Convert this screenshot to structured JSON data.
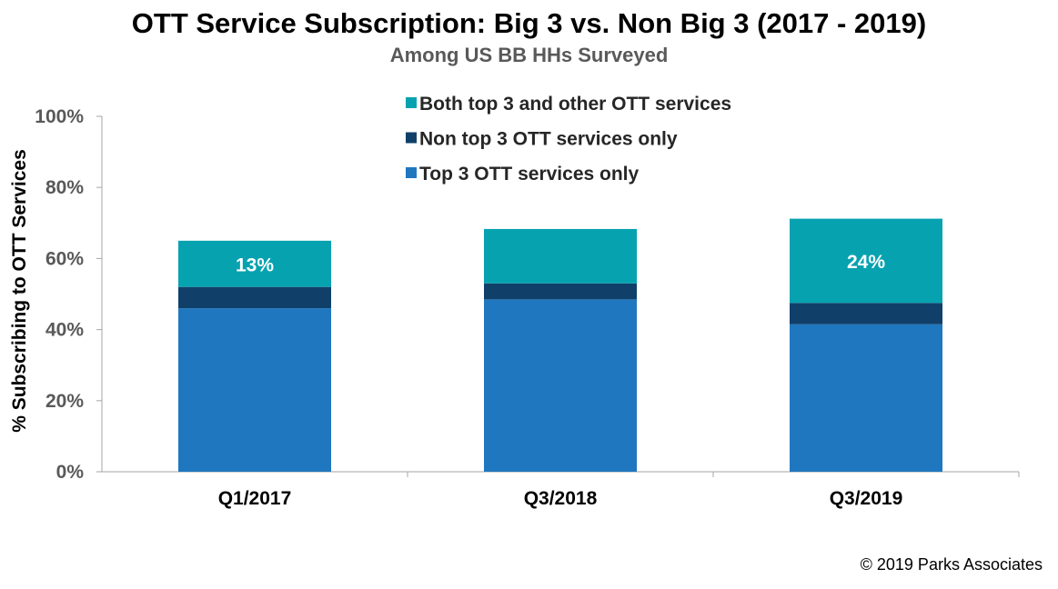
{
  "chart_data": {
    "type": "bar",
    "stacked": true,
    "title": "OTT Service Subscription: Big 3 vs. Non Big 3 (2017 - 2019)",
    "subtitle": "Among US BB HHs Surveyed",
    "xlabel": "",
    "ylabel": "% Subscribing to OTT Services",
    "ylim": [
      0,
      100
    ],
    "yticks": [
      "0%",
      "20%",
      "40%",
      "60%",
      "80%",
      "100%"
    ],
    "grid": false,
    "legend_position": "top",
    "categories": [
      "Q1/2017",
      "Q3/2018",
      "Q3/2019"
    ],
    "series": [
      {
        "name": "Top 3 OTT services only",
        "color": "#1f77bf",
        "values": [
          46,
          48.5,
          41.5
        ]
      },
      {
        "name": "Non top 3 OTT services only",
        "color": "#10406a",
        "values": [
          6,
          4.5,
          6
        ]
      },
      {
        "name": "Both top 3 and other OTT services",
        "color": "#06a2b0",
        "values": [
          13,
          15.3,
          23.7
        ]
      }
    ],
    "legend_order": [
      "Both top 3 and other OTT services",
      "Non top 3 OTT services only",
      "Top 3 OTT services only"
    ],
    "data_labels": [
      {
        "series": "Both top 3 and other OTT services",
        "category": "Q1/2017",
        "text": "13%"
      },
      {
        "series": "Both top 3 and other OTT services",
        "category": "Q3/2019",
        "text": "24%"
      }
    ]
  },
  "footer": {
    "copyright": "© 2019 Parks Associates"
  }
}
